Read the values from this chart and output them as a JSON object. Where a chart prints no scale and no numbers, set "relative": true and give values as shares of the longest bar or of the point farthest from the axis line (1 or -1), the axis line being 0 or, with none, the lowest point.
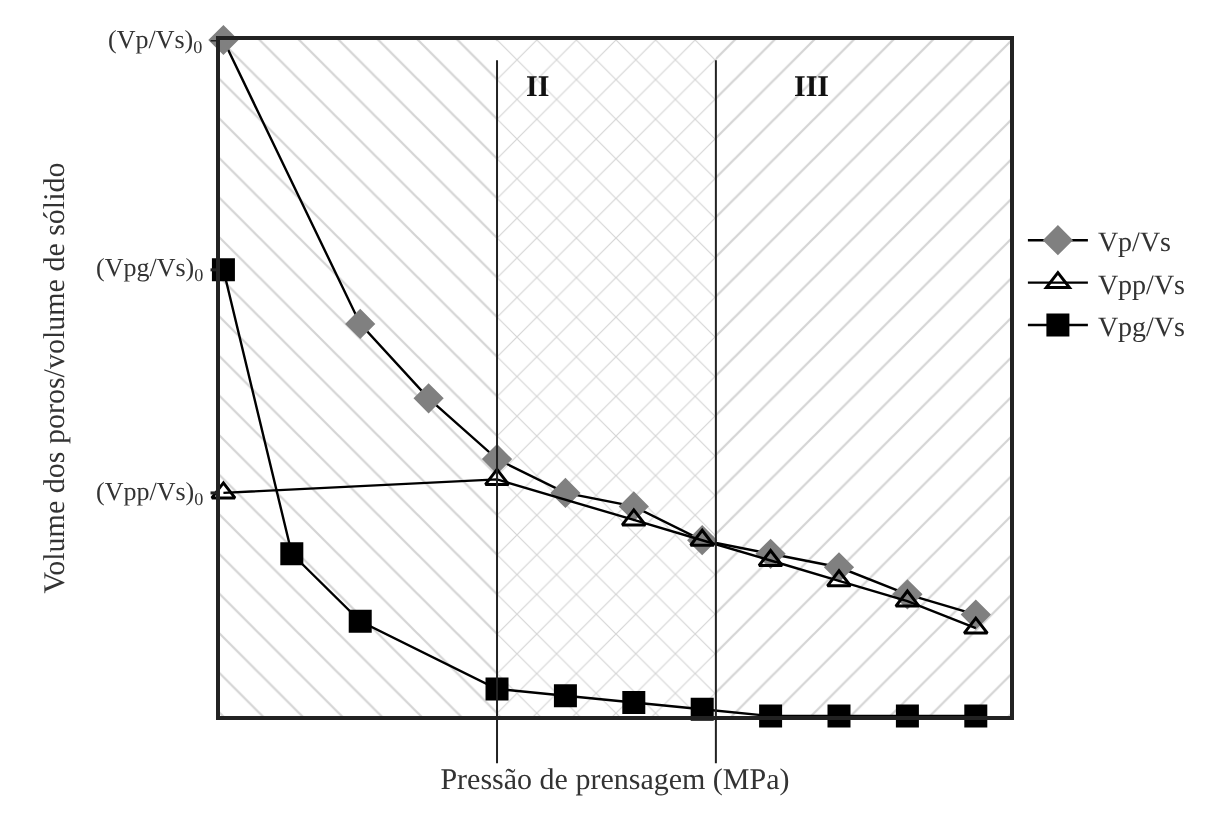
{
  "chart_data": {
    "type": "line",
    "relative": true,
    "xlabel": "Pressão de prensagem (MPa)",
    "ylabel": "Volume dos poros/volume de sólido",
    "categories": [
      null,
      null,
      null,
      null,
      null,
      null,
      null,
      null,
      null,
      null,
      null,
      null
    ],
    "annotations": [
      "II",
      "III",
      "(Vp/Vs)$_{0}$",
      "(Vpg/Vs)$_{0}$",
      "(Vpp/Vs)$_{0}$"
    ],
    "series": [
      {
        "name": "Vp/Vs",
        "color": "#808080",
        "marker": "diamond",
        "values": [
          1,
          null,
          0.58,
          0.47,
          0.38,
          0.33,
          0.31,
          0.26,
          0.24,
          0.22,
          0.18,
          0.15
        ]
      },
      {
        "name": "Vpp/Vs",
        "color": "#000000",
        "marker": "triangle",
        "values": [
          0.33,
          null,
          null,
          null,
          0.35,
          null,
          0.29,
          0.26,
          0.23,
          0.2,
          0.17,
          0.13
        ]
      },
      {
        "name": "Vpg/Vs",
        "color": "#000000",
        "marker": "square",
        "values": [
          0.66,
          0.24,
          0.14,
          null,
          0.04,
          0.03,
          0.02,
          0.01,
          0,
          0,
          0,
          0
        ]
      }
    ],
    "legend": "right"
  }
}
